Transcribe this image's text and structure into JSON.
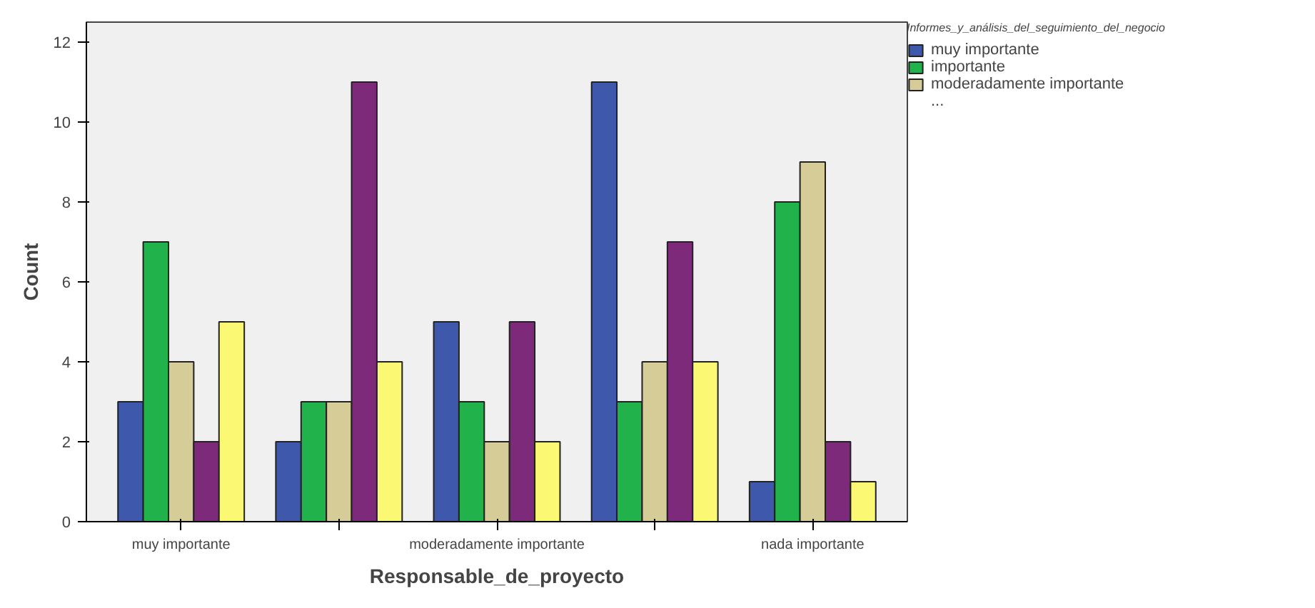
{
  "chart_data": {
    "type": "bar",
    "xlabel": "Responsable_de_proyecto",
    "ylabel": "Count",
    "legend_title": "Informes_y_análisis_del_seguimiento_del_negocio",
    "categories": [
      "muy importante",
      null,
      "moderadamente importante",
      null,
      "nada importante"
    ],
    "series": [
      {
        "name": "muy importante",
        "color": "#3e58ac",
        "values": [
          3,
          2,
          5,
          11,
          1
        ]
      },
      {
        "name": "importante",
        "color": "#22b24c",
        "values": [
          7,
          3,
          3,
          3,
          8
        ]
      },
      {
        "name": "moderadamente importante",
        "color": "#d5cc97",
        "values": [
          4,
          3,
          2,
          4,
          9
        ]
      },
      {
        "color": "#7d2a7b",
        "values": [
          2,
          11,
          5,
          7,
          2
        ]
      },
      {
        "color": "#fbf873",
        "values": [
          5,
          4,
          2,
          4,
          1
        ]
      }
    ],
    "annotations": [
      "..."
    ],
    "ylim": [
      0,
      12.5
    ],
    "yticks": [
      0,
      2,
      4,
      6,
      8,
      10,
      12
    ],
    "grid": false,
    "legend": "top right"
  }
}
